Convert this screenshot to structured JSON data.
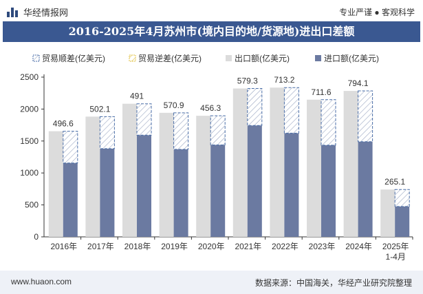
{
  "header": {
    "brand": "华经情报网",
    "tags": "专业严谨 ● 客观科学"
  },
  "footer": {
    "url": "www.huaon.com",
    "source": "数据来源：中国海关，华经产业研究院整理"
  },
  "colors": {
    "title_bg": "#3a5891",
    "export": "#dcdcdc",
    "import": "#6b7aa1",
    "surplus_border": "#4a6ea8",
    "deficit_border": "#e0c040"
  },
  "chart_data": {
    "type": "bar",
    "title": "2016-2025年4月苏州市(境内目的地/货源地)进出口差额",
    "categories": [
      "2016年",
      "2017年",
      "2018年",
      "2019年",
      "2020年",
      "2021年",
      "2022年",
      "2023年",
      "2024年",
      "2025年\n1-4月"
    ],
    "series": [
      {
        "name": "贸易顺差(亿美元)",
        "values": [
          496.6,
          502.1,
          491,
          570.9,
          456.3,
          579.3,
          713.2,
          711.6,
          794.1,
          265.1
        ]
      },
      {
        "name": "贸易逆差(亿美元)",
        "values": [
          0,
          0,
          0,
          0,
          0,
          0,
          0,
          0,
          0,
          0
        ]
      },
      {
        "name": "出口额(亿美元)",
        "values": [
          1653,
          1882,
          2083,
          1941,
          1895,
          2322,
          2336,
          2147,
          2284,
          741
        ]
      },
      {
        "name": "进口额(亿美元)",
        "values": [
          1156,
          1380,
          1592,
          1370,
          1439,
          1743,
          1623,
          1435,
          1490,
          476
        ]
      }
    ],
    "ylim": [
      0,
      2500
    ],
    "yticks": [
      0,
      500,
      1000,
      1500,
      2000,
      2500
    ],
    "legend_position": "top",
    "grid": false
  }
}
